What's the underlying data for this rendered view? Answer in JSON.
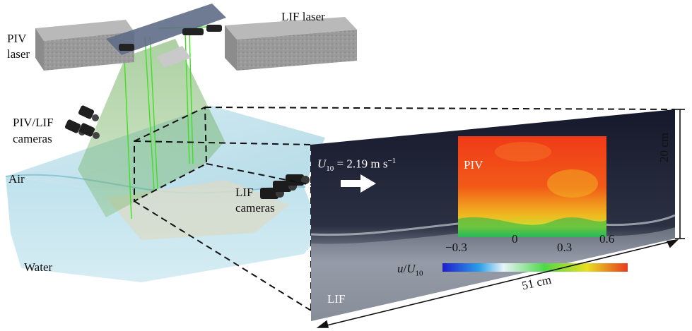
{
  "labels": {
    "piv_laser_1": "PIV",
    "piv_laser_2": "laser",
    "lif_laser": "LIF laser",
    "piv_lif_cameras_1": "PIV/LIF",
    "piv_lif_cameras_2": "cameras",
    "air": "Air",
    "water": "Water",
    "lif_cameras_1": "LIF",
    "lif_cameras_2": "cameras",
    "piv_panel": "PIV",
    "lif_panel": "LIF",
    "height": "20 cm",
    "width": "51 cm"
  },
  "wind": {
    "symbol": "U",
    "subscript": "10",
    "value_text": "= 2.19 m s",
    "exponent": "−1"
  },
  "colorbar": {
    "var": "u",
    "slash": "/",
    "norm": "U",
    "norm_sub": "10",
    "ticks": [
      "−0.3",
      "0",
      "0.3",
      "0.6"
    ],
    "colors": [
      "#1e1ecf",
      "#2aa0e8",
      "#e8f4f8",
      "#4ed84a",
      "#e8e020",
      "#e83a20"
    ]
  }
}
